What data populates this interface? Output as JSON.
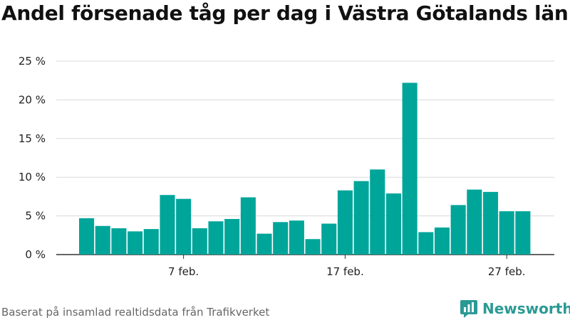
{
  "chart_data": {
    "type": "bar",
    "title": "Andel försenade tåg per dag i Västra Götalands län",
    "xlabel": "",
    "ylabel": "",
    "categories": [
      "1 feb.",
      "2 feb.",
      "3 feb.",
      "4 feb.",
      "5 feb.",
      "6 feb.",
      "7 feb.",
      "8 feb.",
      "9 feb.",
      "10 feb.",
      "11 feb.",
      "12 feb.",
      "13 feb.",
      "14 feb.",
      "15 feb.",
      "16 feb.",
      "17 feb.",
      "18 feb.",
      "19 feb.",
      "20 feb.",
      "21 feb.",
      "22 feb.",
      "23 feb.",
      "24 feb.",
      "25 feb.",
      "26 feb.",
      "27 feb.",
      "28 feb."
    ],
    "values": [
      4.7,
      3.7,
      3.4,
      3.0,
      3.3,
      7.7,
      7.2,
      3.4,
      4.3,
      4.6,
      7.4,
      2.7,
      4.2,
      4.4,
      2.0,
      4.0,
      8.3,
      9.5,
      11.0,
      7.9,
      22.2,
      2.9,
      3.5,
      6.4,
      8.4,
      8.1,
      5.6,
      5.6
    ],
    "ylim": [
      0,
      25
    ],
    "yticks": [
      0,
      5,
      10,
      15,
      20,
      25
    ],
    "ytick_labels": [
      "0 %",
      "5 %",
      "10 %",
      "15 %",
      "20 %",
      "25 %"
    ],
    "xticks": [
      {
        "index": 6,
        "label": "7 feb."
      },
      {
        "index": 16,
        "label": "17 feb."
      },
      {
        "index": 26,
        "label": "27 feb."
      }
    ],
    "bar_color": "#00a59a",
    "grid": "horizontal",
    "legend": "none"
  },
  "footer": {
    "source": "Baserat på insamlad realtidsdata från Trafikverket",
    "logo_text": "Newsworthy"
  },
  "colors": {
    "accent": "#2b9a94"
  }
}
